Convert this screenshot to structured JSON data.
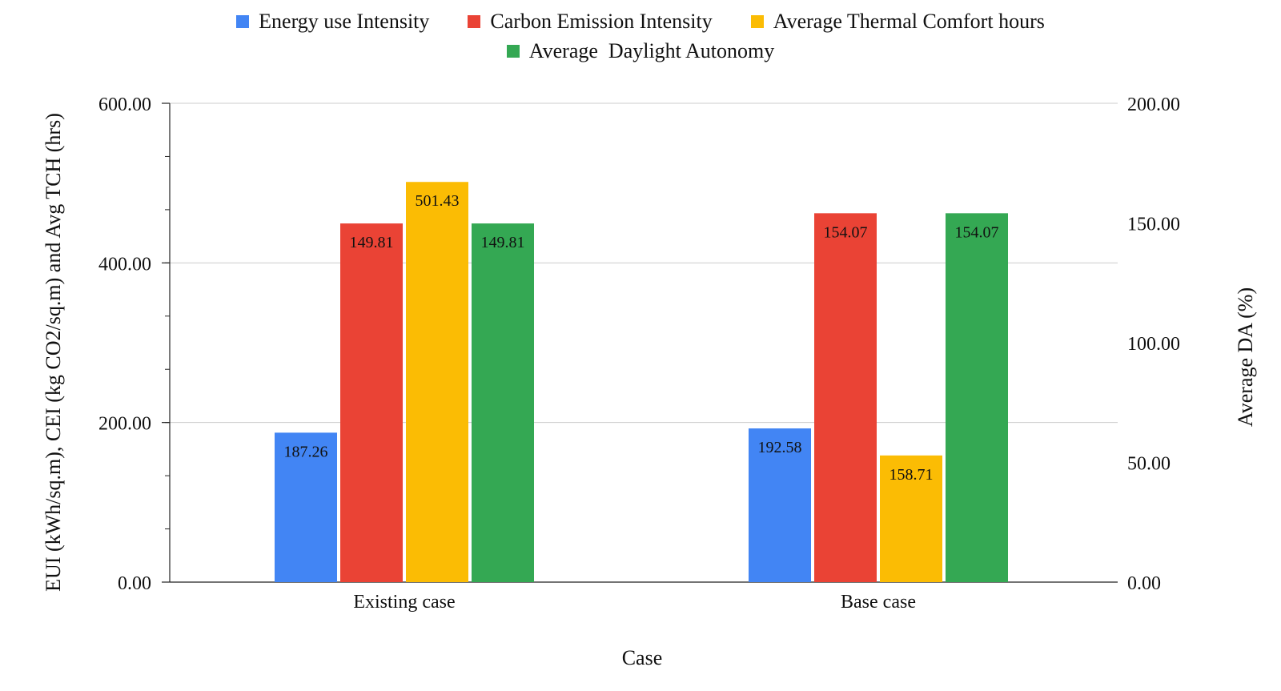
{
  "chart_data": {
    "type": "bar",
    "categories": [
      "Existing case",
      "Base case"
    ],
    "xlabel": "Case",
    "ylabel": "EUI (kWh/sq.m), CEI (kg CO2/sq.m) and Avg TCH (hrs)",
    "y2label": "Average DA (%)",
    "ylim": [
      0,
      600
    ],
    "y2lim": [
      0,
      200
    ],
    "yticks": [
      "0.00",
      "200.00",
      "400.00",
      "600.00"
    ],
    "y2ticks": [
      "0.00",
      "50.00",
      "100.00",
      "150.00",
      "200.00"
    ],
    "grid": true,
    "legend": "top",
    "series": [
      {
        "name": "Energy use Intensity",
        "axis": "left",
        "color": "#4285F4",
        "values": [
          187.26,
          192.58
        ],
        "labels": [
          "187.26",
          "192.58"
        ]
      },
      {
        "name": "Carbon Emission Intensity",
        "axis": "right",
        "color": "#EA4335",
        "values": [
          149.81,
          154.07
        ],
        "labels": [
          "149.81",
          "154.07"
        ]
      },
      {
        "name": "Average Thermal Comfort hours",
        "axis": "left",
        "color": "#FBBC04",
        "values": [
          501.43,
          158.71
        ],
        "labels": [
          "501.43",
          "158.71"
        ]
      },
      {
        "name": "Average  Daylight Autonomy",
        "axis": "right",
        "color": "#34A853",
        "values": [
          149.81,
          154.07
        ],
        "labels": [
          "149.81",
          "154.07"
        ]
      }
    ]
  }
}
